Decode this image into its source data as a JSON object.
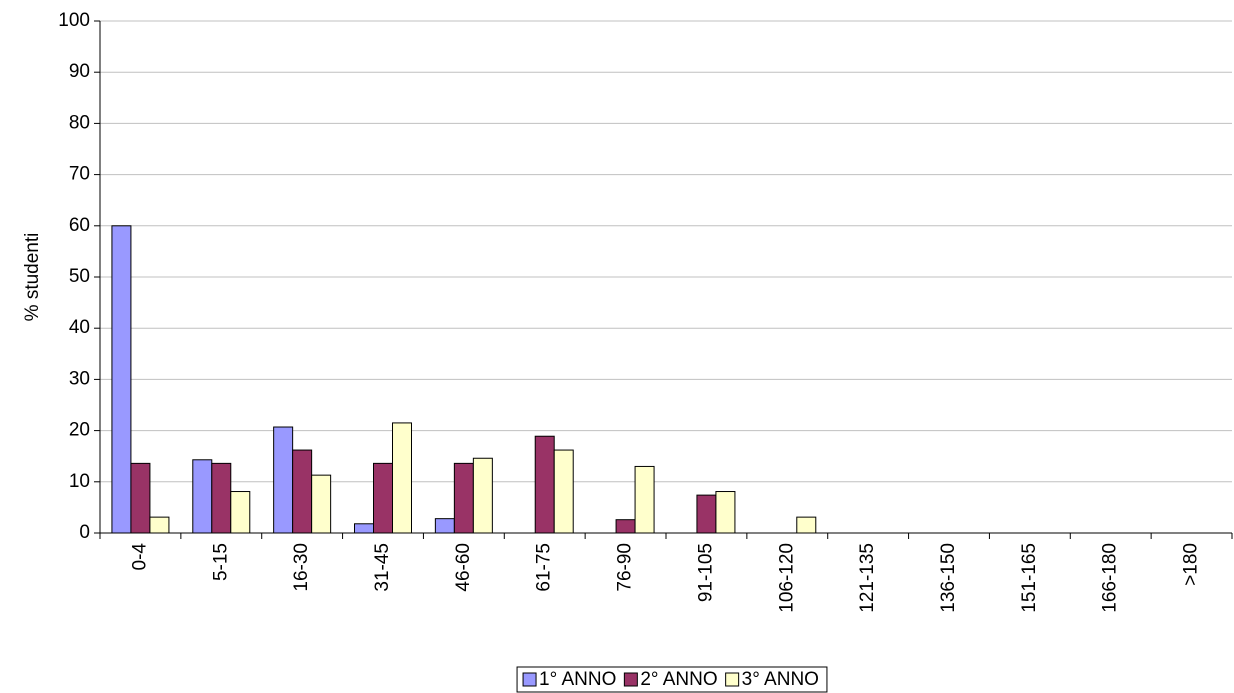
{
  "chart_data": {
    "type": "bar",
    "y_label": "% studenti",
    "categories": [
      "0-4",
      "5-15",
      "16-30",
      "31-45",
      "46-60",
      "61-75",
      "76-90",
      "91-105",
      "106-120",
      "121-135",
      "136-150",
      "151-165",
      "166-180",
      ">180"
    ],
    "series": [
      {
        "name": "1° ANNO",
        "color": "#9999ff",
        "values": [
          60,
          14.3,
          20.7,
          1.8,
          2.8,
          0,
          0,
          0,
          0,
          0,
          0,
          0,
          0,
          0
        ]
      },
      {
        "name": "2° ANNO",
        "color": "#993366",
        "values": [
          13.6,
          13.6,
          16.2,
          13.6,
          13.6,
          18.9,
          2.6,
          7.4,
          0,
          0,
          0,
          0,
          0,
          0
        ]
      },
      {
        "name": "3° ANNO",
        "color": "#ffffcc",
        "values": [
          3.1,
          8.1,
          11.3,
          21.5,
          14.6,
          16.2,
          13.0,
          8.1,
          3.1,
          0,
          0,
          0,
          0,
          0
        ]
      }
    ],
    "ylim": [
      0,
      100
    ],
    "yticks": [
      0,
      10,
      20,
      30,
      40,
      50,
      60,
      70,
      80,
      90,
      100
    ],
    "grid": true,
    "legend": "bottom"
  }
}
